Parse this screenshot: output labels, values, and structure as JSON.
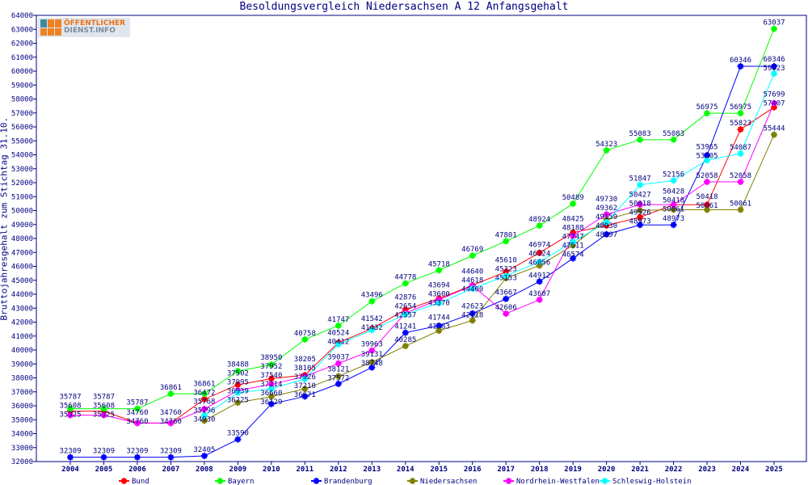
{
  "chart_data": {
    "type": "line",
    "title": "Besoldungsvergleich Niedersachsen A 12 Anfangsgehalt",
    "xlabel": "",
    "ylabel": "Bruttojahresgehalt zum Stichtag 31.10.",
    "ylim": [
      32000,
      64000
    ],
    "ytick_step": 1000,
    "grid": false,
    "legend_position": "bottom",
    "data_labels": true,
    "logo": "ÖFFENTLICHER DIENST.INFO",
    "categories": [
      "2004",
      "2005",
      "2006",
      "2007",
      "2008",
      "2009",
      "2010",
      "2011",
      "2012",
      "2013",
      "2014",
      "2015",
      "2016",
      "2017",
      "2018",
      "2019",
      "2020",
      "2021",
      "2022",
      "2023",
      "2024",
      "2025"
    ],
    "series": [
      {
        "name": "Bund",
        "color": "#ff0000",
        "values": [
          35608,
          35608,
          34760,
          34760,
          36472,
          37502,
          37952,
          38205,
          40524,
          41542,
          42876,
          43694,
          44640,
          45610,
          46974,
          48425,
          48930,
          49526,
          50418,
          50418,
          55823,
          57407
        ]
      },
      {
        "name": "Bayern",
        "color": "#00ff00",
        "values": [
          35787,
          35787,
          35787,
          36861,
          36861,
          38488,
          38950,
          40758,
          41747,
          43496,
          44778,
          45718,
          46769,
          47801,
          48924,
          50489,
          54323,
          55083,
          55083,
          56975,
          56975,
          63037
        ]
      },
      {
        "name": "Brandenburg",
        "color": "#0000ff",
        "values": [
          32309,
          32309,
          32309,
          32309,
          32405,
          33590,
          36129,
          36671,
          37572,
          38748,
          41241,
          41744,
          42623,
          43667,
          44912,
          46574,
          48297,
          48973,
          48973,
          53965,
          60346,
          60346
        ]
      },
      {
        "name": "Niedersachsen",
        "color": "#808000",
        "values": [
          null,
          null,
          null,
          null,
          34930,
          36225,
          36660,
          37210,
          38121,
          39131,
          40285,
          41383,
          42118,
          45153,
          46056,
          47511,
          49362,
          50018,
          50061,
          50061,
          50061,
          55444
        ]
      },
      {
        "name": "Nordrhein-Westfalen",
        "color": "#ff00ff",
        "values": [
          35325,
          35325,
          34760,
          34760,
          35768,
          37095,
          37540,
          38105,
          39037,
          39963,
          42654,
          43600,
          44618,
          42606,
          43607,
          48188,
          49730,
          50427,
          50428,
          52058,
          52058,
          57699
        ]
      },
      {
        "name": "Schleswig-Holstein",
        "color": "#00ffff",
        "values": [
          null,
          null,
          null,
          null,
          35296,
          36939,
          37214,
          37926,
          40412,
          41432,
          42557,
          43370,
          44400,
          45323,
          46324,
          47747,
          49159,
          51847,
          52156,
          53605,
          54087,
          59823
        ]
      }
    ]
  }
}
